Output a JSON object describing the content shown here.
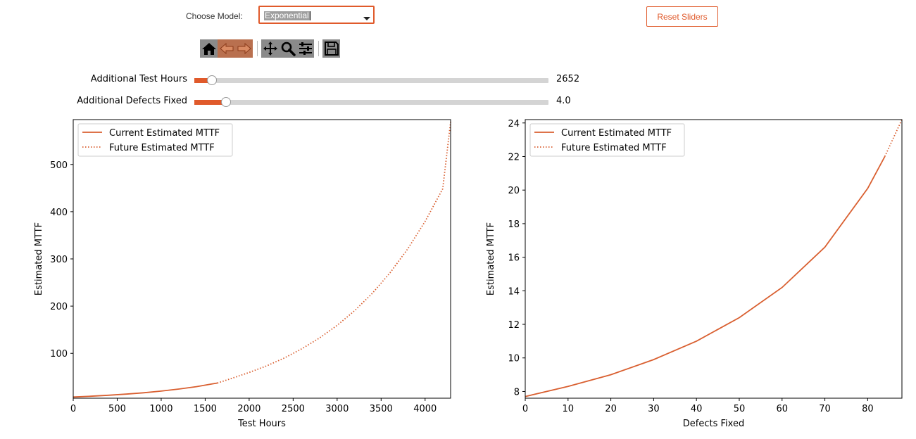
{
  "controls": {
    "model_label": "Choose Model:",
    "model_value": "Exponential",
    "reset_label": "Reset Sliders"
  },
  "toolbar": {
    "icons": [
      "home-icon",
      "back-arrow-icon",
      "forward-arrow-icon",
      "pan-icon",
      "zoom-icon",
      "configure-subplots-icon",
      "save-icon"
    ]
  },
  "sliders": [
    {
      "label": "Additional Test Hours",
      "value_text": "2652",
      "fraction": 0.05
    },
    {
      "label": "Additional Defects Fixed",
      "value_text": "4.0",
      "fraction": 0.09
    }
  ],
  "colors": {
    "accent": "#e05a2b",
    "series": "#d95f30"
  },
  "chart_data": [
    {
      "type": "line",
      "xlabel": "Test Hours",
      "ylabel": "Estimated MTTF",
      "xlim": [
        0,
        4290
      ],
      "ylim": [
        5,
        595
      ],
      "xticks": [
        0,
        500,
        1000,
        1500,
        2000,
        2500,
        3000,
        3500,
        4000
      ],
      "yticks": [
        100,
        200,
        300,
        400,
        500
      ],
      "legend_position": "top-left",
      "series": [
        {
          "name": "Current Estimated MTTF",
          "style": "solid",
          "x": [
            0,
            200,
            400,
            600,
            800,
            1000,
            1200,
            1400,
            1600,
            1638
          ],
          "y": [
            7.6,
            9.2,
            11.2,
            13.6,
            16.5,
            20.0,
            24.3,
            29.5,
            35.8,
            37.1
          ]
        },
        {
          "name": "Future Estimated MTTF",
          "style": "dotted",
          "x": [
            1638,
            1800,
            2000,
            2200,
            2400,
            2600,
            2800,
            3000,
            3200,
            3400,
            3600,
            3800,
            4000,
            4200,
            4290
          ],
          "y": [
            37.1,
            46.8,
            59.5,
            73.6,
            90.2,
            109.7,
            132.5,
            159.2,
            190.5,
            227.2,
            270.2,
            320.5,
            379.4,
            448.4,
            590
          ]
        }
      ]
    },
    {
      "type": "line",
      "xlabel": "Defects Fixed",
      "ylabel": "Estimated MTTF",
      "xlim": [
        0,
        88
      ],
      "ylim": [
        7.6,
        24.2
      ],
      "xticks": [
        0,
        10,
        20,
        30,
        40,
        50,
        60,
        70,
        80
      ],
      "yticks": [
        8,
        10,
        12,
        14,
        16,
        18,
        20,
        22,
        24
      ],
      "legend_position": "top-left",
      "series": [
        {
          "name": "Current Estimated MTTF",
          "style": "solid",
          "x": [
            0,
            10,
            20,
            30,
            40,
            50,
            60,
            70,
            80,
            84
          ],
          "y": [
            7.7,
            8.3,
            9.0,
            9.9,
            11.0,
            12.4,
            14.2,
            16.6,
            20.1,
            22.0
          ]
        },
        {
          "name": "Future Estimated MTTF",
          "style": "dotted",
          "x": [
            84,
            86,
            88
          ],
          "y": [
            22.0,
            23.1,
            24.2
          ]
        }
      ]
    }
  ]
}
